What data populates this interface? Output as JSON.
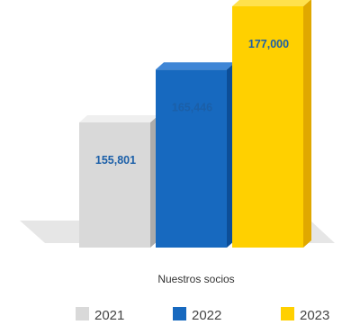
{
  "chart_data": {
    "type": "bar",
    "style": "3d",
    "categories": [
      "2021",
      "2022",
      "2023"
    ],
    "values": [
      155801,
      165446,
      177000
    ],
    "value_labels": [
      "155,801",
      "165,446",
      "177,000"
    ],
    "caption": "Nuestros socios",
    "legend": {
      "placement": "bottom",
      "entries": [
        "2021",
        "2022",
        "2023"
      ]
    },
    "grid": false,
    "colors": {
      "bars": [
        "#d9d9d9",
        "#1769bf",
        "#ffd000"
      ],
      "bar_sides": [
        "#ababab",
        "#0c4e98",
        "#e0a800"
      ],
      "bar_tops": [
        "#efefef",
        "#3f86d6",
        "#ffe14d"
      ],
      "value_label": "#1b5fa8",
      "floor": "#e6e6e6"
    }
  }
}
